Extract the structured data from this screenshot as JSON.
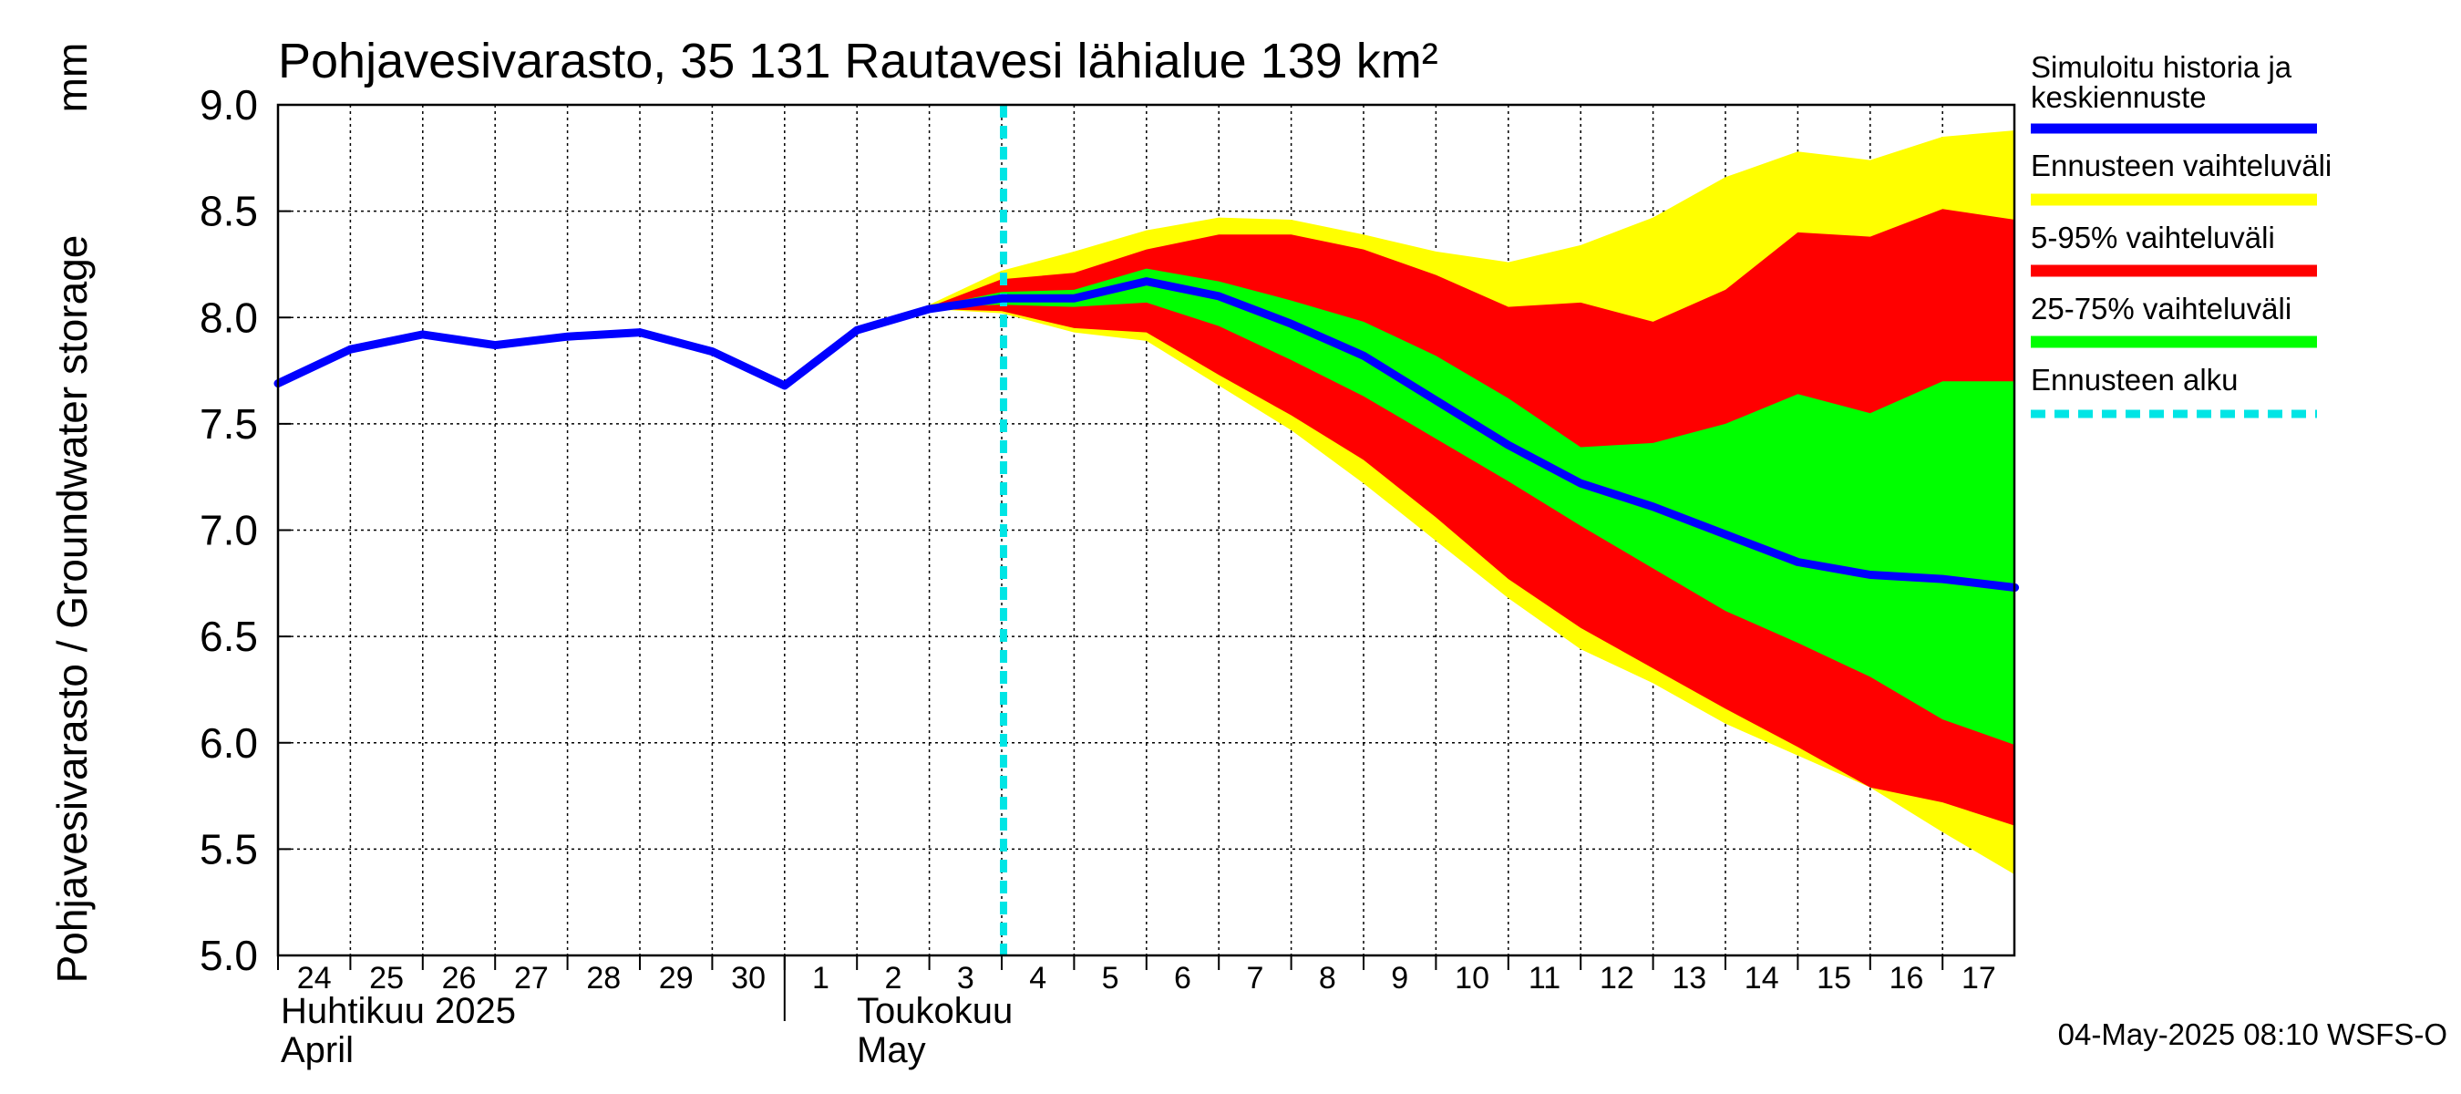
{
  "chart_data": {
    "type": "area",
    "title": "Pohjavesivarasto, 35 131 Rautavesi lähialue 139 km²",
    "ylabel": "Pohjavesivarasto / Groundwater storage",
    "yunit": "mm",
    "ylim": [
      5.0,
      9.0
    ],
    "yticks": [
      "5.0",
      "5.5",
      "6.0",
      "6.5",
      "7.0",
      "7.5",
      "8.0",
      "8.5",
      "9.0"
    ],
    "xlim": [
      "2025-04-24",
      "2025-05-17"
    ],
    "xtick_labels": [
      "24",
      "25",
      "26",
      "27",
      "28",
      "29",
      "30",
      "1",
      "2",
      "3",
      "4",
      "5",
      "6",
      "7",
      "8",
      "9",
      "10",
      "11",
      "12",
      "13",
      "14",
      "15",
      "16",
      "17"
    ],
    "month_labels": [
      {
        "line1": "Huhtikuu  2025",
        "line2": "April"
      },
      {
        "line1": "Toukokuu",
        "line2": "May"
      }
    ],
    "grid": true,
    "legend_position": "right",
    "forecast_start": "2025-05-04",
    "footer": "04-May-2025 08:10 WSFS-O",
    "x": [
      "2025-04-24",
      "2025-04-25",
      "2025-04-26",
      "2025-04-27",
      "2025-04-28",
      "2025-04-29",
      "2025-04-30",
      "2025-05-01",
      "2025-05-02",
      "2025-05-03",
      "2025-05-04",
      "2025-05-05",
      "2025-05-06",
      "2025-05-07",
      "2025-05-08",
      "2025-05-09",
      "2025-05-10",
      "2025-05-11",
      "2025-05-12",
      "2025-05-13",
      "2025-05-14",
      "2025-05-15",
      "2025-05-16",
      "2025-05-17",
      "2025-05-18"
    ],
    "series": [
      {
        "name": "Simuloitu historia ja keskiennuste",
        "color": "#0000ff",
        "values": [
          7.69,
          7.85,
          7.92,
          7.87,
          7.91,
          7.93,
          7.84,
          7.68,
          7.94,
          8.04,
          8.09,
          8.09,
          8.17,
          8.1,
          7.97,
          7.82,
          7.61,
          7.4,
          7.22,
          7.11,
          6.98,
          6.85,
          6.79,
          6.77,
          6.73
        ]
      }
    ],
    "bands": [
      {
        "name": "Ennusteen vaihteluväli",
        "color": "#ffff00",
        "lower": [
          null,
          null,
          null,
          null,
          null,
          null,
          null,
          null,
          null,
          8.04,
          8.02,
          7.93,
          7.89,
          7.68,
          7.47,
          7.22,
          6.95,
          6.68,
          6.44,
          6.28,
          6.09,
          5.94,
          5.79,
          5.58,
          5.38
        ],
        "upper": [
          null,
          null,
          null,
          null,
          null,
          null,
          null,
          null,
          null,
          8.06,
          8.22,
          8.31,
          8.41,
          8.47,
          8.46,
          8.39,
          8.31,
          8.26,
          8.34,
          8.47,
          8.66,
          8.78,
          8.74,
          8.85,
          8.88
        ]
      },
      {
        "name": "5-95% vaihteluväli",
        "color": "#ff0000",
        "lower": [
          null,
          null,
          null,
          null,
          null,
          null,
          null,
          null,
          null,
          8.04,
          8.03,
          7.95,
          7.93,
          7.73,
          7.54,
          7.33,
          7.06,
          6.77,
          6.54,
          6.35,
          6.16,
          5.98,
          5.79,
          5.72,
          5.61
        ],
        "upper": [
          null,
          null,
          null,
          null,
          null,
          null,
          null,
          null,
          null,
          8.05,
          8.18,
          8.21,
          8.32,
          8.39,
          8.39,
          8.32,
          8.2,
          8.05,
          8.07,
          7.98,
          8.13,
          8.4,
          8.38,
          8.51,
          8.46
        ]
      },
      {
        "name": "25-75% vaihteluväli",
        "color": "#00ff00",
        "lower": [
          null,
          null,
          null,
          null,
          null,
          null,
          null,
          null,
          null,
          8.05,
          8.06,
          8.05,
          8.07,
          7.96,
          7.8,
          7.63,
          7.43,
          7.23,
          7.02,
          6.82,
          6.62,
          6.47,
          6.31,
          6.11,
          5.99
        ],
        "upper": [
          null,
          null,
          null,
          null,
          null,
          null,
          null,
          null,
          null,
          8.05,
          8.12,
          8.13,
          8.23,
          8.17,
          8.08,
          7.98,
          7.82,
          7.62,
          7.39,
          7.41,
          7.5,
          7.64,
          7.55,
          7.7,
          7.7
        ]
      }
    ],
    "legend": [
      {
        "label_line1": "Simuloitu historia ja",
        "label_line2": "keskiennuste",
        "color": "#0000ff",
        "style": "solid"
      },
      {
        "label_line1": "Ennusteen vaihteluväli",
        "color": "#ffff00",
        "style": "solid"
      },
      {
        "label_line1": "5-95% vaihteluväli",
        "color": "#ff0000",
        "style": "solid"
      },
      {
        "label_line1": "25-75% vaihteluväli",
        "color": "#00ff00",
        "style": "solid"
      },
      {
        "label_line1": "Ennusteen alku",
        "color": "#00e5e5",
        "style": "dashed"
      }
    ]
  }
}
